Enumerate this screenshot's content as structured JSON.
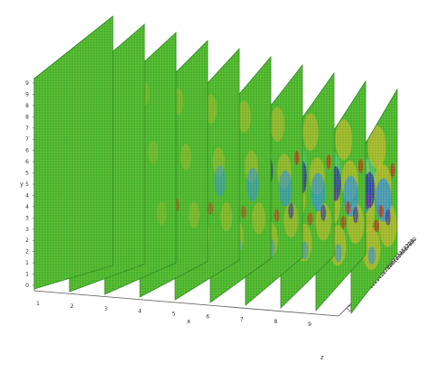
{
  "figure": {
    "y_axis": {
      "label": "y",
      "tick_labels": [
        "0",
        "1",
        "1",
        "2",
        "2",
        "3",
        "3",
        "4",
        "4",
        "5",
        "5",
        "6",
        "6",
        "7",
        "7",
        "8",
        "8",
        "9",
        "9"
      ]
    },
    "x_axis": {
      "label": "x",
      "tick_labels": [
        "1",
        "2",
        "3",
        "4",
        "5",
        "6",
        "7",
        "8",
        "9"
      ]
    },
    "z_axis": {
      "label": "z",
      "tick_labels": [
        "1",
        "2",
        "3",
        "4",
        "5",
        "6",
        "7",
        "8",
        "9",
        "10",
        "11",
        "12",
        "13",
        "14",
        "15",
        "16",
        "17",
        "18",
        "19",
        "20",
        "21",
        "22",
        "23",
        "24",
        "25",
        "26",
        "27",
        "28",
        "29",
        "30"
      ]
    },
    "slice_count": 10,
    "colors": {
      "background_field": "#45b12e",
      "grid_lines": "#c8f04a",
      "high": "#c42a14",
      "mid_high": "#c8b42c",
      "low": "#2a8ce0",
      "lowest": "#2a1ea8",
      "extreme_low": "#7a22b4",
      "cyan": "#38d6c8",
      "axis": "#555555"
    }
  }
}
